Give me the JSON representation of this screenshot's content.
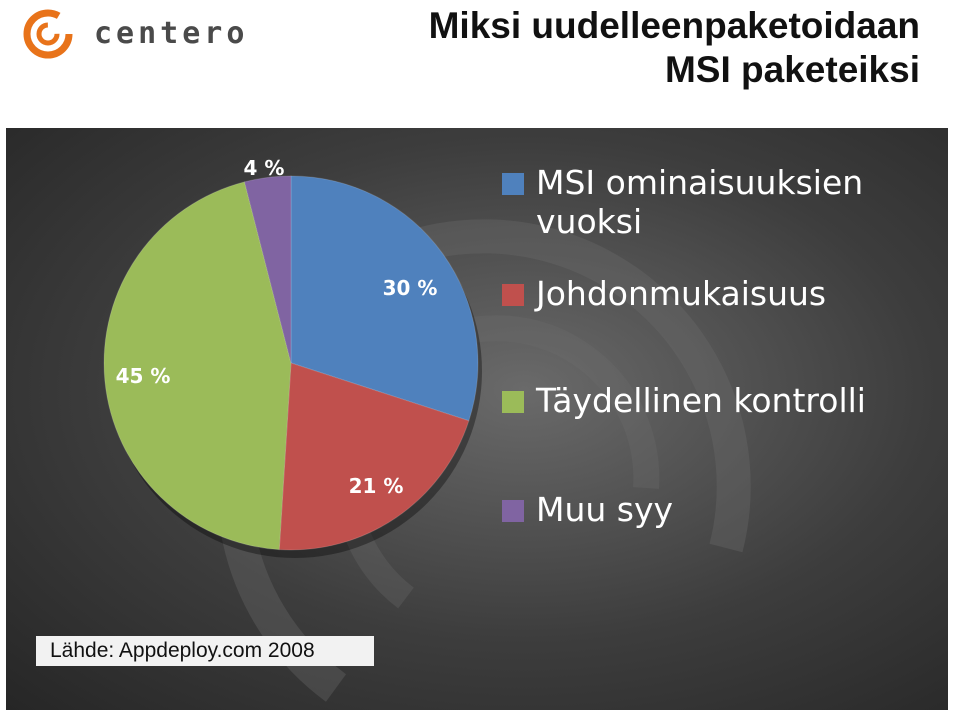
{
  "logo": {
    "text": "centero"
  },
  "title": {
    "line1": "Miksi uudelleenpaketoidaan",
    "line2": "MSI paketeiksi"
  },
  "source": "Lähde: Appdeploy.com 2008",
  "colors": {
    "accent": "#e8731a",
    "panel": "#3d3d3d"
  },
  "chart_data": {
    "type": "pie",
    "title": "",
    "legend_position": "right",
    "slices": [
      {
        "name": "MSI ominaisuuksien vuoksi",
        "value": 30,
        "label": "30 %",
        "color": "#4f81bd"
      },
      {
        "name": "Johdonmukaisuus",
        "value": 21,
        "label": "21 %",
        "color": "#c0504d"
      },
      {
        "name": "Täydellinen kontrolli",
        "value": 45,
        "label": "45 %",
        "color": "#9bbb59"
      },
      {
        "name": "Muu syy",
        "value": 4,
        "label": "4 %",
        "color": "#8064a2"
      }
    ]
  }
}
